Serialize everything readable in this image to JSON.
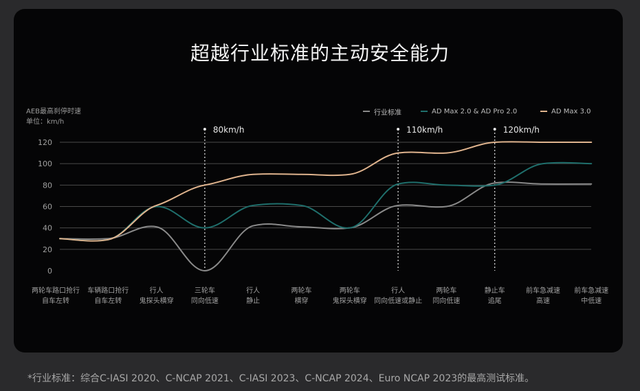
{
  "title": "超越行业标准的主动安全能力",
  "footnote": "*行业标准：综合C-IASI 2020、C-NCAP 2021、C-IASI 2023、C-NCAP 2024、Euro NCAP 2023的最高测试标准。",
  "colors": {
    "industry": "#8a8a8a",
    "ad_max2": "#1f6f6c",
    "ad_max3": "#e0b48e",
    "grid": "#4a4a4a",
    "marker": "#e8e8e8"
  },
  "chart_data": {
    "type": "line",
    "ylabel": "AEB最高刹停时速",
    "yunit": "单位：km/h",
    "ylim": [
      0,
      120
    ],
    "yticks": [
      0,
      20,
      40,
      60,
      80,
      100,
      120
    ],
    "grid": "horizontal",
    "legend_position": "top-right",
    "categories": [
      "两轮车路口抢行\n自车左转",
      "车辆路口抢行\n自车左转",
      "行人\n鬼探头横穿",
      "三轮车\n同向低速",
      "行人\n静止",
      "两轮车\n横穿",
      "两轮车\n鬼探头横穿",
      "行人\n同向低速或静止",
      "两轮车\n同向低速",
      "静止车\n追尾",
      "前车急减速\n高速",
      "前车急减速\n中低速"
    ],
    "series": [
      {
        "name": "行业标准",
        "key": "industry",
        "values": [
          30,
          30,
          41,
          0,
          42,
          41,
          40,
          61,
          60,
          82,
          81,
          81
        ]
      },
      {
        "name": "AD Max 2.0 & AD Pro 2.0",
        "key": "ad_max2",
        "values": [
          30,
          29,
          60,
          40,
          61,
          61,
          40,
          81,
          80,
          80,
          100,
          100
        ]
      },
      {
        "name": "AD Max 3.0",
        "key": "ad_max3",
        "values": [
          30,
          29,
          61,
          80,
          90,
          90,
          90,
          110,
          110,
          120,
          120,
          120
        ]
      }
    ],
    "annotations": [
      {
        "category_index": 3,
        "label": "80km/h"
      },
      {
        "category_index": 7,
        "label": "110km/h"
      },
      {
        "category_index": 9,
        "label": "120km/h"
      }
    ]
  }
}
